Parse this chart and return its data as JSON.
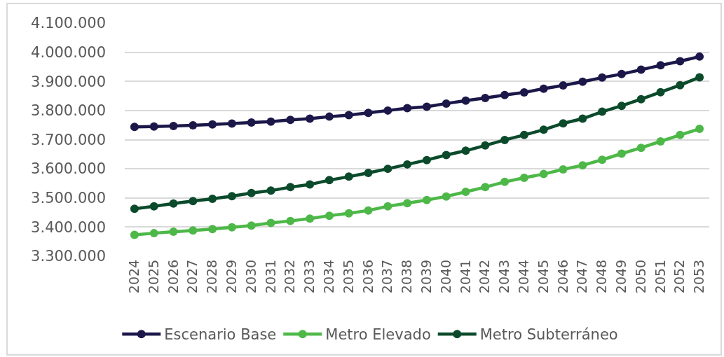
{
  "chart_data": {
    "type": "line",
    "categories": [
      "2024",
      "2025",
      "2026",
      "2027",
      "2028",
      "2029",
      "2030",
      "2031",
      "2032",
      "2033",
      "2034",
      "2035",
      "2036",
      "2037",
      "2038",
      "2039",
      "2040",
      "2041",
      "2042",
      "2043",
      "2044",
      "2045",
      "2046",
      "2047",
      "2048",
      "2049",
      "2050",
      "2051",
      "2052",
      "2053"
    ],
    "series": [
      {
        "name": "Escenario Base",
        "color": "#1b1749",
        "values": [
          3744000,
          3745000,
          3747000,
          3749000,
          3752000,
          3755000,
          3759000,
          3762000,
          3768000,
          3772000,
          3779000,
          3784000,
          3792000,
          3800000,
          3808000,
          3813000,
          3824000,
          3834000,
          3843000,
          3853000,
          3862000,
          3875000,
          3886000,
          3899000,
          3913000,
          3925000,
          3940000,
          3955000,
          3969000,
          3985000
        ]
      },
      {
        "name": "Metro Elevado",
        "color": "#4db848",
        "values": [
          3373000,
          3379000,
          3384000,
          3388000,
          3393000,
          3399000,
          3405000,
          3414000,
          3421000,
          3429000,
          3439000,
          3447000,
          3457000,
          3471000,
          3482000,
          3493000,
          3505000,
          3521000,
          3537000,
          3555000,
          3569000,
          3582000,
          3598000,
          3612000,
          3631000,
          3652000,
          3672000,
          3694000,
          3716000,
          3737000
        ]
      },
      {
        "name": "Metro Subterráneo",
        "color": "#0b4a2b",
        "values": [
          3463000,
          3471000,
          3481000,
          3489000,
          3497000,
          3506000,
          3517000,
          3525000,
          3537000,
          3546000,
          3561000,
          3573000,
          3586000,
          3600000,
          3615000,
          3630000,
          3647000,
          3662000,
          3680000,
          3699000,
          3716000,
          3734000,
          3756000,
          3772000,
          3796000,
          3816000,
          3839000,
          3863000,
          3887000,
          3914000
        ]
      }
    ],
    "ylim": [
      3300000,
      4100000
    ],
    "yticks": [
      {
        "value": 3300000,
        "label": "3.300.000"
      },
      {
        "value": 3400000,
        "label": "3.400.000"
      },
      {
        "value": 3500000,
        "label": "3.500.000"
      },
      {
        "value": 3600000,
        "label": "3.600.000"
      },
      {
        "value": 3700000,
        "label": "3.700.000"
      },
      {
        "value": 3800000,
        "label": "3.800.000"
      },
      {
        "value": 3900000,
        "label": "3.900.000"
      },
      {
        "value": 4000000,
        "label": "4.000.000"
      },
      {
        "value": 4100000,
        "label": "4.100.000"
      }
    ],
    "grid": "y",
    "legend": "bottom",
    "marker": "circle",
    "line_style": "solid"
  }
}
